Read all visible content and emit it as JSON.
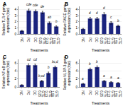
{
  "chart_data": [
    {
      "type": "bar",
      "title": "A",
      "ylabel": "Relative TLR-4 gene\nexpression (fold)",
      "xlabel": "Treatments",
      "categories": [
        "NC",
        "PC",
        "DC",
        "GTE\n6.25",
        "GTE\n3.13",
        "GTE\n1.56"
      ],
      "values": [
        0.5,
        3.8,
        3.7,
        3.5,
        1.8,
        1.2
      ],
      "errors": [
        0.08,
        0.25,
        0.22,
        0.2,
        0.18,
        0.12
      ],
      "annotations": [
        null,
        "cde",
        "cde",
        "de",
        "ab",
        "b"
      ],
      "color": "#1a237e",
      "ylim": [
        0,
        4.5
      ],
      "yticks": [
        0,
        1,
        2,
        3,
        4
      ],
      "grid": true
    },
    {
      "type": "bar",
      "title": "B",
      "ylabel": "Relative RAGE gene\nexpression (fold)",
      "xlabel": "Treatments",
      "categories": [
        "NC",
        "PC",
        "DC",
        "GTE\n6.25",
        "GTE\n3.13",
        "GTE\n1.56"
      ],
      "values": [
        0.8,
        2.5,
        2.5,
        3.2,
        1.8,
        1.3
      ],
      "errors": [
        0.1,
        0.22,
        0.2,
        0.28,
        0.2,
        0.15
      ],
      "annotations": [
        null,
        "d",
        "d",
        "d",
        "c",
        "b"
      ],
      "color": "#1a237e",
      "ylim": [
        0,
        4.5
      ],
      "yticks": [
        0,
        1,
        2,
        3,
        4
      ],
      "grid": true
    },
    {
      "type": "bar",
      "title": "C",
      "ylabel": "Relative NF-κB gene\nexpression (fold)",
      "xlabel": "Treatments",
      "categories": [
        "NC",
        "PC",
        "DC",
        "GTE\n6.25",
        "GTE\n3.13",
        "GTE\n1.56"
      ],
      "values": [
        0.5,
        5.5,
        5.5,
        1.5,
        3.5,
        5.0
      ],
      "errors": [
        0.08,
        0.35,
        0.3,
        0.18,
        0.28,
        0.3
      ],
      "annotations": [
        null,
        "cd",
        "cd",
        "b,cd",
        "b",
        "bc,d"
      ],
      "color": "#1a237e",
      "ylim": [
        0,
        7
      ],
      "yticks": [
        0,
        2,
        4,
        6
      ],
      "grid": true
    },
    {
      "type": "bar",
      "title": "D",
      "ylabel": "Relative NLRP-3 gene\nexpression (fold)",
      "xlabel": "Treatments",
      "categories": [
        "NC",
        "PC",
        "DC",
        "GTE\n6.25",
        "GTE\n3.13",
        "GTE\n1.56"
      ],
      "values": [
        0.8,
        4.5,
        5.0,
        1.5,
        1.2,
        1.0
      ],
      "errors": [
        0.1,
        0.3,
        0.35,
        0.18,
        0.15,
        0.12
      ],
      "annotations": [
        "a",
        "b",
        "b",
        "a",
        "a",
        "a"
      ],
      "color": "#1a237e",
      "ylim": [
        0,
        7
      ],
      "yticks": [
        0,
        2,
        4,
        6
      ],
      "grid": true
    }
  ]
}
